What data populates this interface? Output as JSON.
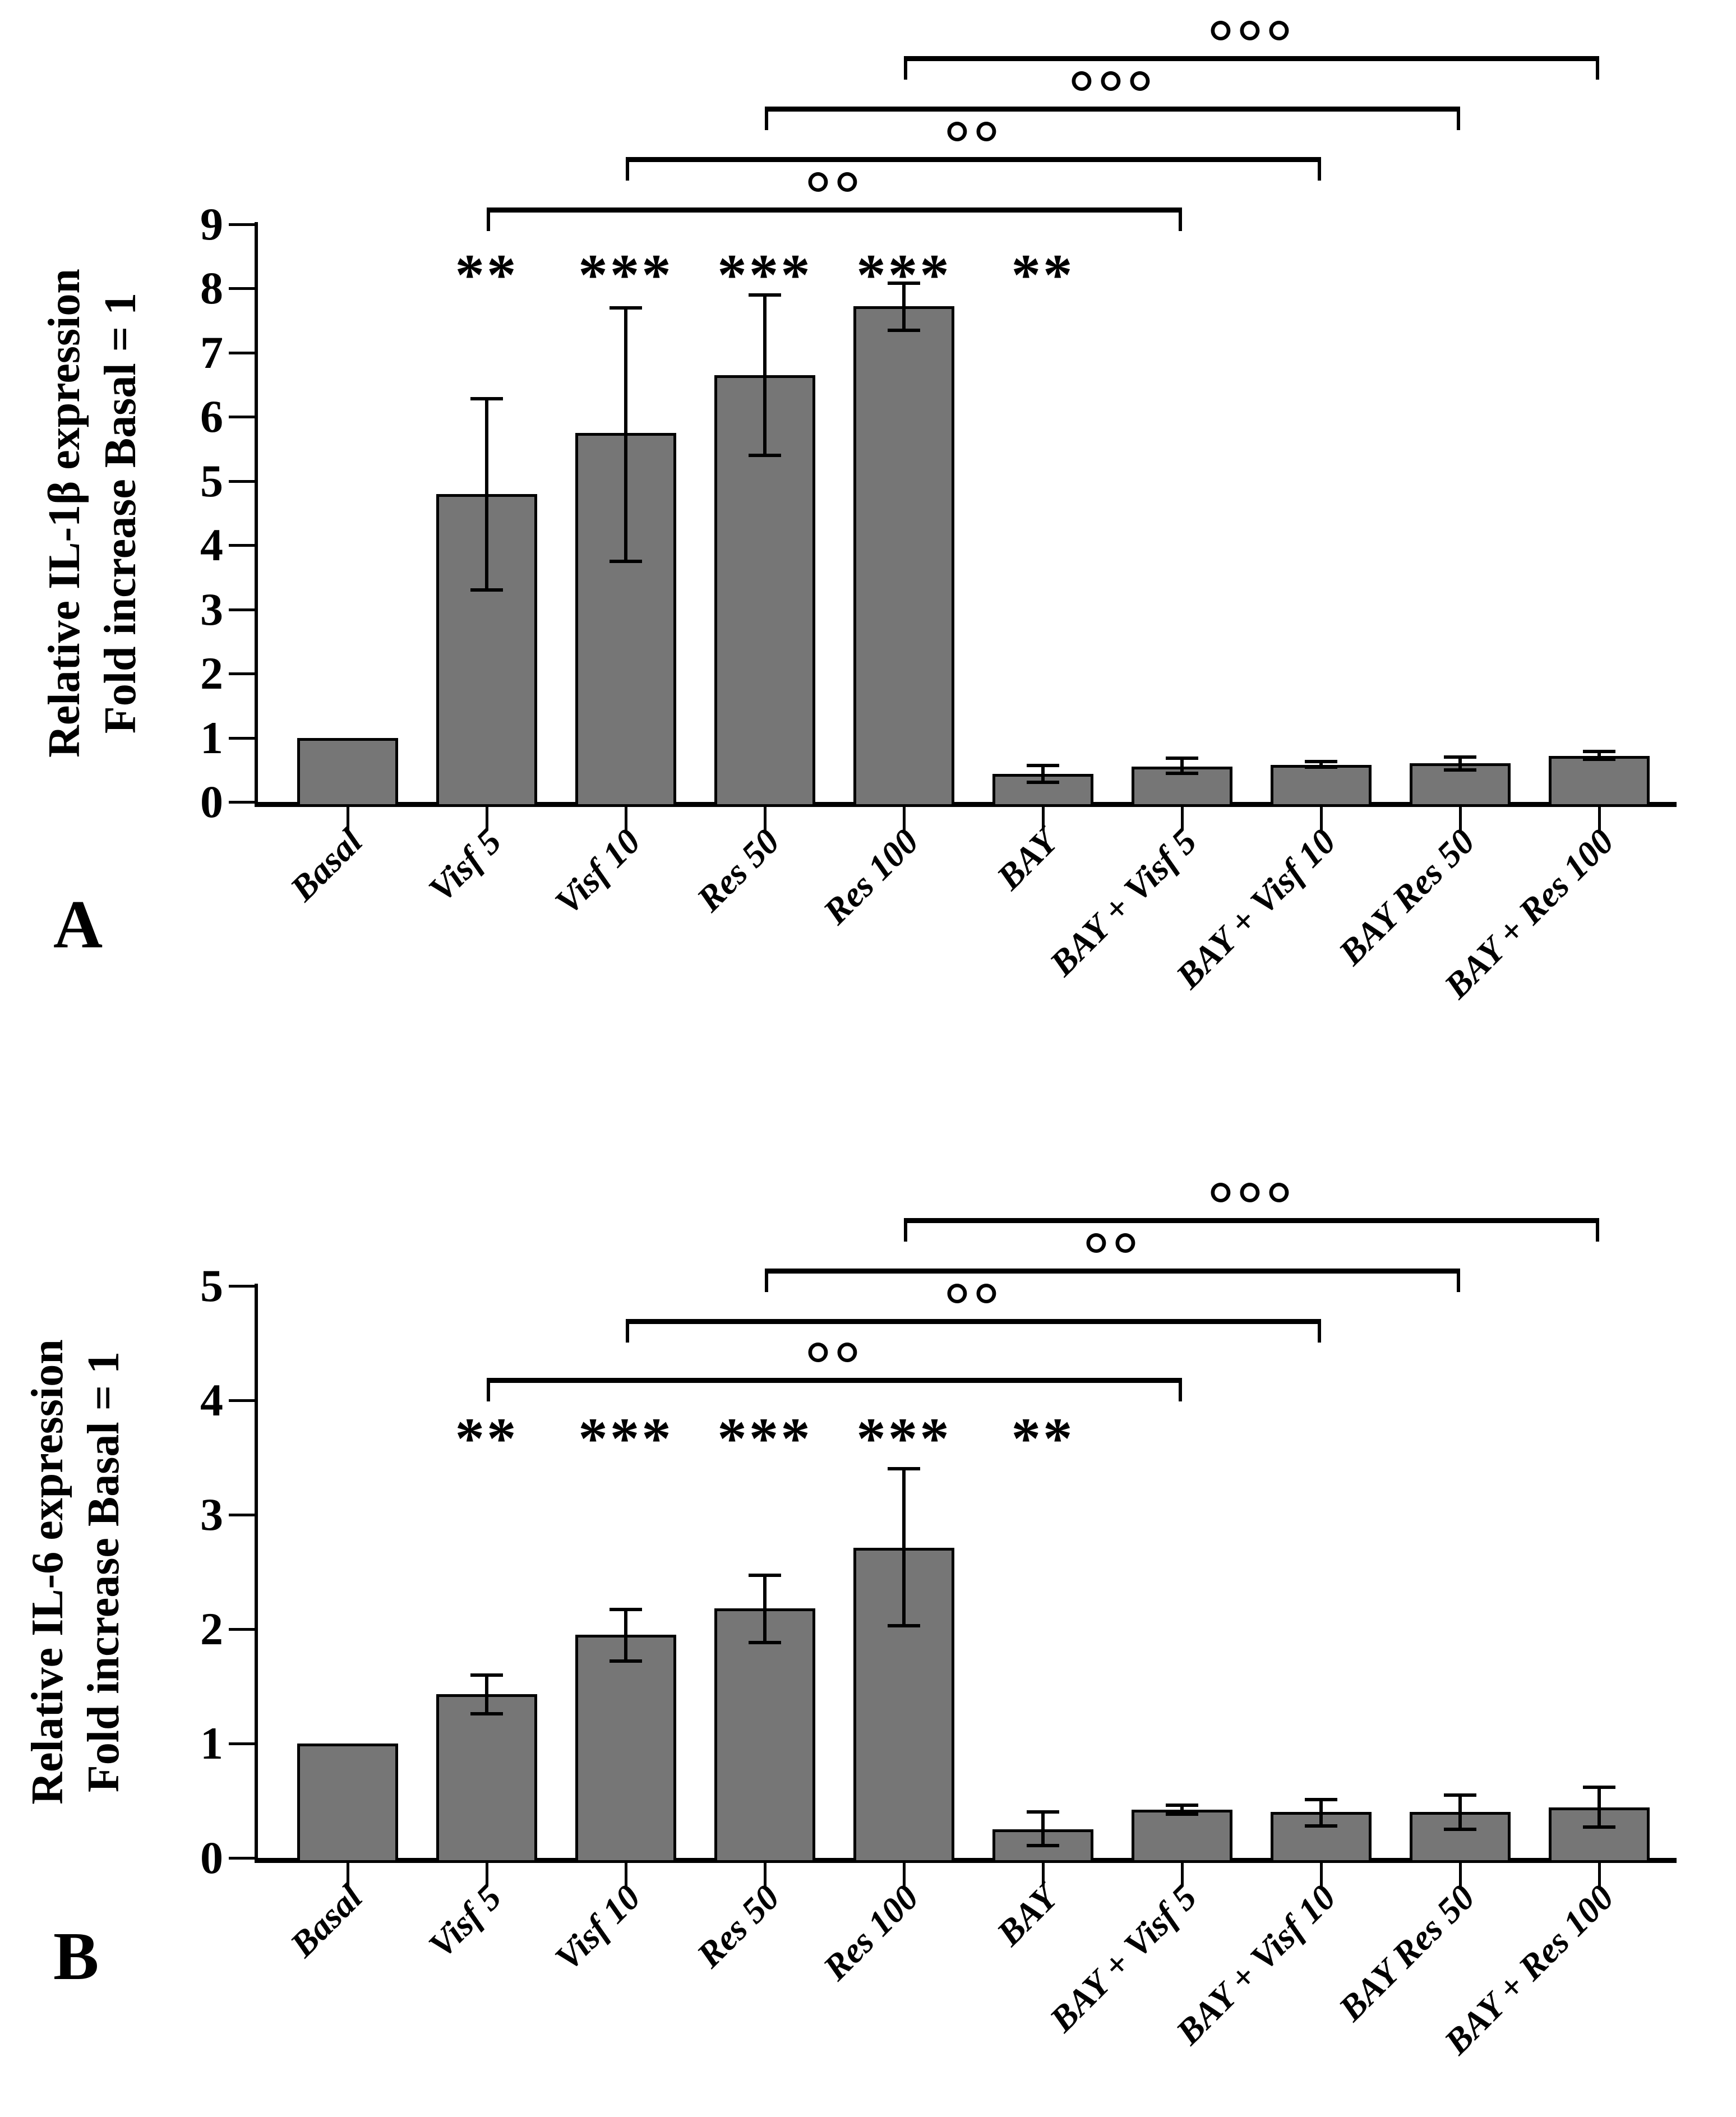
{
  "colors": {
    "bar_fill": "#767676",
    "bar_border": "#000000",
    "axis": "#000000",
    "background": "#ffffff",
    "text": "#000000"
  },
  "chart_data": [
    {
      "type": "bar",
      "panel_letter": "A",
      "ylabel_lines": [
        "Relative IL-1β expression",
        "Fold increase Basal = 1"
      ],
      "ylim": [
        0,
        9
      ],
      "yticks": [
        "0",
        "1",
        "2",
        "3",
        "4",
        "5",
        "6",
        "7",
        "8",
        "9"
      ],
      "grid": "off",
      "legend": "none",
      "categories": [
        "Basal",
        "Visf 5",
        "Visf 10",
        "Res 50",
        "Res 100",
        "BAY",
        "BAY + Visf 5",
        "BAY + Visf 10",
        "BAY Res 50",
        "BAY + Res 100"
      ],
      "values": [
        1.0,
        4.8,
        5.75,
        6.65,
        7.72,
        0.44,
        0.55,
        0.58,
        0.6,
        0.72
      ],
      "error_low": [
        null,
        3.3,
        3.75,
        5.4,
        7.35,
        0.31,
        0.45,
        0.54,
        0.5,
        0.66
      ],
      "error_high": [
        null,
        6.28,
        7.7,
        7.9,
        8.08,
        0.57,
        0.68,
        0.63,
        0.7,
        0.79
      ],
      "bar_significance": [
        "",
        "**",
        "***",
        "***",
        "***",
        "**",
        "",
        "",
        "",
        ""
      ],
      "comparison_brackets": [
        {
          "from": "Res 100",
          "to": "BAY + Res 100",
          "label": "°°°"
        },
        {
          "from": "Res 50",
          "to": "BAY Res 50",
          "label": "°°°"
        },
        {
          "from": "Visf 10",
          "to": "BAY + Visf 10",
          "label": "°°"
        },
        {
          "from": "Visf 5",
          "to": "BAY + Visf 5",
          "label": "°°"
        }
      ]
    },
    {
      "type": "bar",
      "panel_letter": "B",
      "ylabel_lines": [
        "Relative IL-6 expression",
        "Fold increase Basal = 1"
      ],
      "ylim": [
        0,
        5
      ],
      "yticks": [
        "0",
        "1",
        "2",
        "3",
        "4",
        "5"
      ],
      "grid": "off",
      "legend": "none",
      "categories": [
        "Basal",
        "Visf 5",
        "Visf 10",
        "Res 50",
        "Res 100",
        "BAY",
        "BAY + Visf 5",
        "BAY + Visf 10",
        "BAY Res 50",
        "BAY + Res 100"
      ],
      "values": [
        1.0,
        1.43,
        1.95,
        2.18,
        2.71,
        0.25,
        0.42,
        0.4,
        0.4,
        0.44
      ],
      "error_low": [
        null,
        1.26,
        1.72,
        1.88,
        2.03,
        0.11,
        0.38,
        0.28,
        0.25,
        0.27
      ],
      "error_high": [
        null,
        1.6,
        2.17,
        2.47,
        3.4,
        0.4,
        0.46,
        0.51,
        0.55,
        0.62
      ],
      "bar_significance": [
        "",
        "**",
        "***",
        "***",
        "***",
        "**",
        "",
        "",
        "",
        ""
      ],
      "comparison_brackets": [
        {
          "from": "Res 100",
          "to": "BAY + Res 100",
          "label": "°°°"
        },
        {
          "from": "Res 50",
          "to": "BAY Res 50",
          "label": "°°"
        },
        {
          "from": "Visf 10",
          "to": "BAY + Visf 10",
          "label": "°°"
        },
        {
          "from": "Visf 5",
          "to": "BAY + Visf 5",
          "label": "°°"
        }
      ]
    }
  ]
}
